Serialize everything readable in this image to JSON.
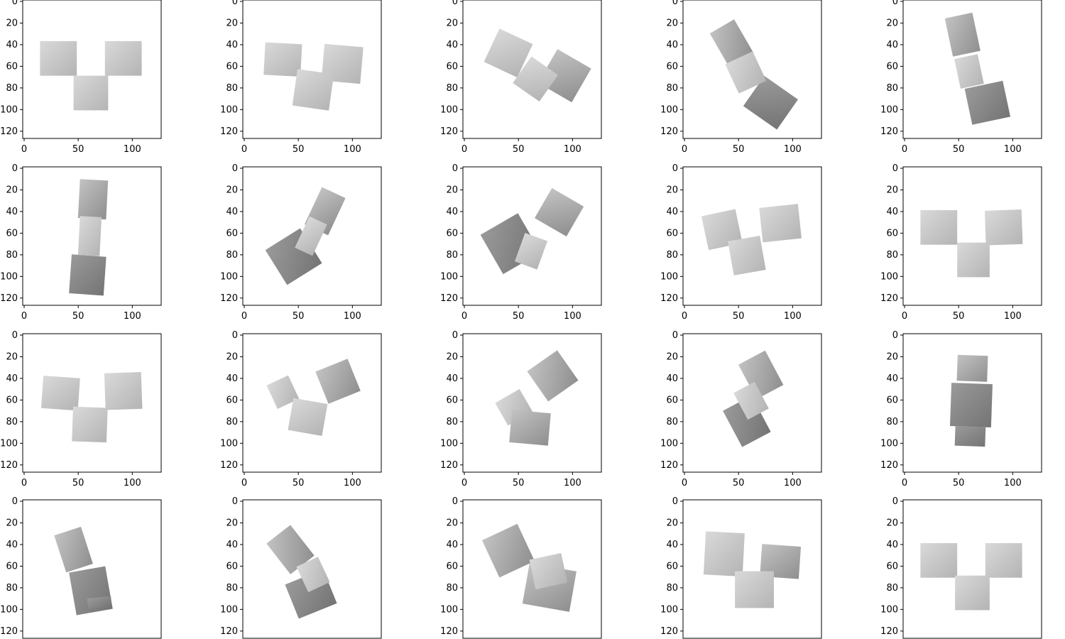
{
  "figure": {
    "panel_grid": {
      "rows": 4,
      "cols": 5
    },
    "x_ticks": [
      "0",
      "50",
      "100"
    ],
    "y_ticks": [
      "0",
      "20",
      "40",
      "60",
      "80",
      "100",
      "120"
    ],
    "image_range": [
      0,
      128
    ],
    "background": "#ffffff",
    "axis_color": "#000000",
    "shape_palette": {
      "light": "#d4d4d4",
      "mid": "#a8a8a8",
      "dark": "#7e7e7e"
    }
  },
  "panels": [
    {
      "id": "r1c1",
      "description": "three cubes in T arrangement, upright view"
    },
    {
      "id": "r1c2",
      "description": "three cubes slightly rotated"
    },
    {
      "id": "r1c3",
      "description": "three cubes rotated diagonally"
    },
    {
      "id": "r1c4",
      "description": "cubes stacked diagonally"
    },
    {
      "id": "r1c5",
      "description": "cubes stacked vertically, tilted"
    },
    {
      "id": "r2c1",
      "description": "cubes stacked vertically"
    },
    {
      "id": "r2c2",
      "description": "cubes stacked along diagonal"
    },
    {
      "id": "r2c3",
      "description": "cubes rotated, dark faces"
    },
    {
      "id": "r2c4",
      "description": "three cubes slightly rotated"
    },
    {
      "id": "r2c5",
      "description": "three cubes in T arrangement"
    },
    {
      "id": "r3c1",
      "description": "three cubes in T arrangement"
    },
    {
      "id": "r3c2",
      "description": "three cubes rotated"
    },
    {
      "id": "r3c3",
      "description": "cubes rotated diagonally"
    },
    {
      "id": "r3c4",
      "description": "cubes stacked diagonally"
    },
    {
      "id": "r3c5",
      "description": "cubes stacked vertically"
    },
    {
      "id": "r4c1",
      "description": "cubes stacked vertically, tilted"
    },
    {
      "id": "r4c2",
      "description": "cubes rotated diagonally"
    },
    {
      "id": "r4c3",
      "description": "cubes rotated"
    },
    {
      "id": "r4c4",
      "description": "three cubes nearly T arrangement"
    },
    {
      "id": "r4c5",
      "description": "three cubes in T arrangement, upright view"
    }
  ]
}
